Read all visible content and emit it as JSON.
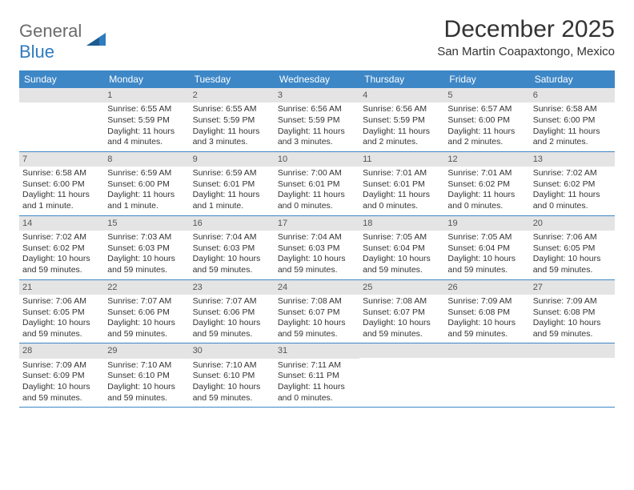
{
  "logo": {
    "general": "General",
    "blue": "Blue"
  },
  "title": "December 2025",
  "location": "San Martin Coapaxtongo, Mexico",
  "day_headers": [
    "Sunday",
    "Monday",
    "Tuesday",
    "Wednesday",
    "Thursday",
    "Friday",
    "Saturday"
  ],
  "header_bg": "#3d87c7",
  "header_fg": "#ffffff",
  "num_bar_bg": "#e4e4e4",
  "weeks": [
    [
      {
        "num": "",
        "sunrise": "",
        "sunset": "",
        "daylight": ""
      },
      {
        "num": "1",
        "sunrise": "Sunrise: 6:55 AM",
        "sunset": "Sunset: 5:59 PM",
        "daylight": "Daylight: 11 hours and 4 minutes."
      },
      {
        "num": "2",
        "sunrise": "Sunrise: 6:55 AM",
        "sunset": "Sunset: 5:59 PM",
        "daylight": "Daylight: 11 hours and 3 minutes."
      },
      {
        "num": "3",
        "sunrise": "Sunrise: 6:56 AM",
        "sunset": "Sunset: 5:59 PM",
        "daylight": "Daylight: 11 hours and 3 minutes."
      },
      {
        "num": "4",
        "sunrise": "Sunrise: 6:56 AM",
        "sunset": "Sunset: 5:59 PM",
        "daylight": "Daylight: 11 hours and 2 minutes."
      },
      {
        "num": "5",
        "sunrise": "Sunrise: 6:57 AM",
        "sunset": "Sunset: 6:00 PM",
        "daylight": "Daylight: 11 hours and 2 minutes."
      },
      {
        "num": "6",
        "sunrise": "Sunrise: 6:58 AM",
        "sunset": "Sunset: 6:00 PM",
        "daylight": "Daylight: 11 hours and 2 minutes."
      }
    ],
    [
      {
        "num": "7",
        "sunrise": "Sunrise: 6:58 AM",
        "sunset": "Sunset: 6:00 PM",
        "daylight": "Daylight: 11 hours and 1 minute."
      },
      {
        "num": "8",
        "sunrise": "Sunrise: 6:59 AM",
        "sunset": "Sunset: 6:00 PM",
        "daylight": "Daylight: 11 hours and 1 minute."
      },
      {
        "num": "9",
        "sunrise": "Sunrise: 6:59 AM",
        "sunset": "Sunset: 6:01 PM",
        "daylight": "Daylight: 11 hours and 1 minute."
      },
      {
        "num": "10",
        "sunrise": "Sunrise: 7:00 AM",
        "sunset": "Sunset: 6:01 PM",
        "daylight": "Daylight: 11 hours and 0 minutes."
      },
      {
        "num": "11",
        "sunrise": "Sunrise: 7:01 AM",
        "sunset": "Sunset: 6:01 PM",
        "daylight": "Daylight: 11 hours and 0 minutes."
      },
      {
        "num": "12",
        "sunrise": "Sunrise: 7:01 AM",
        "sunset": "Sunset: 6:02 PM",
        "daylight": "Daylight: 11 hours and 0 minutes."
      },
      {
        "num": "13",
        "sunrise": "Sunrise: 7:02 AM",
        "sunset": "Sunset: 6:02 PM",
        "daylight": "Daylight: 11 hours and 0 minutes."
      }
    ],
    [
      {
        "num": "14",
        "sunrise": "Sunrise: 7:02 AM",
        "sunset": "Sunset: 6:02 PM",
        "daylight": "Daylight: 10 hours and 59 minutes."
      },
      {
        "num": "15",
        "sunrise": "Sunrise: 7:03 AM",
        "sunset": "Sunset: 6:03 PM",
        "daylight": "Daylight: 10 hours and 59 minutes."
      },
      {
        "num": "16",
        "sunrise": "Sunrise: 7:04 AM",
        "sunset": "Sunset: 6:03 PM",
        "daylight": "Daylight: 10 hours and 59 minutes."
      },
      {
        "num": "17",
        "sunrise": "Sunrise: 7:04 AM",
        "sunset": "Sunset: 6:03 PM",
        "daylight": "Daylight: 10 hours and 59 minutes."
      },
      {
        "num": "18",
        "sunrise": "Sunrise: 7:05 AM",
        "sunset": "Sunset: 6:04 PM",
        "daylight": "Daylight: 10 hours and 59 minutes."
      },
      {
        "num": "19",
        "sunrise": "Sunrise: 7:05 AM",
        "sunset": "Sunset: 6:04 PM",
        "daylight": "Daylight: 10 hours and 59 minutes."
      },
      {
        "num": "20",
        "sunrise": "Sunrise: 7:06 AM",
        "sunset": "Sunset: 6:05 PM",
        "daylight": "Daylight: 10 hours and 59 minutes."
      }
    ],
    [
      {
        "num": "21",
        "sunrise": "Sunrise: 7:06 AM",
        "sunset": "Sunset: 6:05 PM",
        "daylight": "Daylight: 10 hours and 59 minutes."
      },
      {
        "num": "22",
        "sunrise": "Sunrise: 7:07 AM",
        "sunset": "Sunset: 6:06 PM",
        "daylight": "Daylight: 10 hours and 59 minutes."
      },
      {
        "num": "23",
        "sunrise": "Sunrise: 7:07 AM",
        "sunset": "Sunset: 6:06 PM",
        "daylight": "Daylight: 10 hours and 59 minutes."
      },
      {
        "num": "24",
        "sunrise": "Sunrise: 7:08 AM",
        "sunset": "Sunset: 6:07 PM",
        "daylight": "Daylight: 10 hours and 59 minutes."
      },
      {
        "num": "25",
        "sunrise": "Sunrise: 7:08 AM",
        "sunset": "Sunset: 6:07 PM",
        "daylight": "Daylight: 10 hours and 59 minutes."
      },
      {
        "num": "26",
        "sunrise": "Sunrise: 7:09 AM",
        "sunset": "Sunset: 6:08 PM",
        "daylight": "Daylight: 10 hours and 59 minutes."
      },
      {
        "num": "27",
        "sunrise": "Sunrise: 7:09 AM",
        "sunset": "Sunset: 6:08 PM",
        "daylight": "Daylight: 10 hours and 59 minutes."
      }
    ],
    [
      {
        "num": "28",
        "sunrise": "Sunrise: 7:09 AM",
        "sunset": "Sunset: 6:09 PM",
        "daylight": "Daylight: 10 hours and 59 minutes."
      },
      {
        "num": "29",
        "sunrise": "Sunrise: 7:10 AM",
        "sunset": "Sunset: 6:10 PM",
        "daylight": "Daylight: 10 hours and 59 minutes."
      },
      {
        "num": "30",
        "sunrise": "Sunrise: 7:10 AM",
        "sunset": "Sunset: 6:10 PM",
        "daylight": "Daylight: 10 hours and 59 minutes."
      },
      {
        "num": "31",
        "sunrise": "Sunrise: 7:11 AM",
        "sunset": "Sunset: 6:11 PM",
        "daylight": "Daylight: 11 hours and 0 minutes."
      },
      {
        "num": "",
        "sunrise": "",
        "sunset": "",
        "daylight": ""
      },
      {
        "num": "",
        "sunrise": "",
        "sunset": "",
        "daylight": ""
      },
      {
        "num": "",
        "sunrise": "",
        "sunset": "",
        "daylight": ""
      }
    ]
  ]
}
